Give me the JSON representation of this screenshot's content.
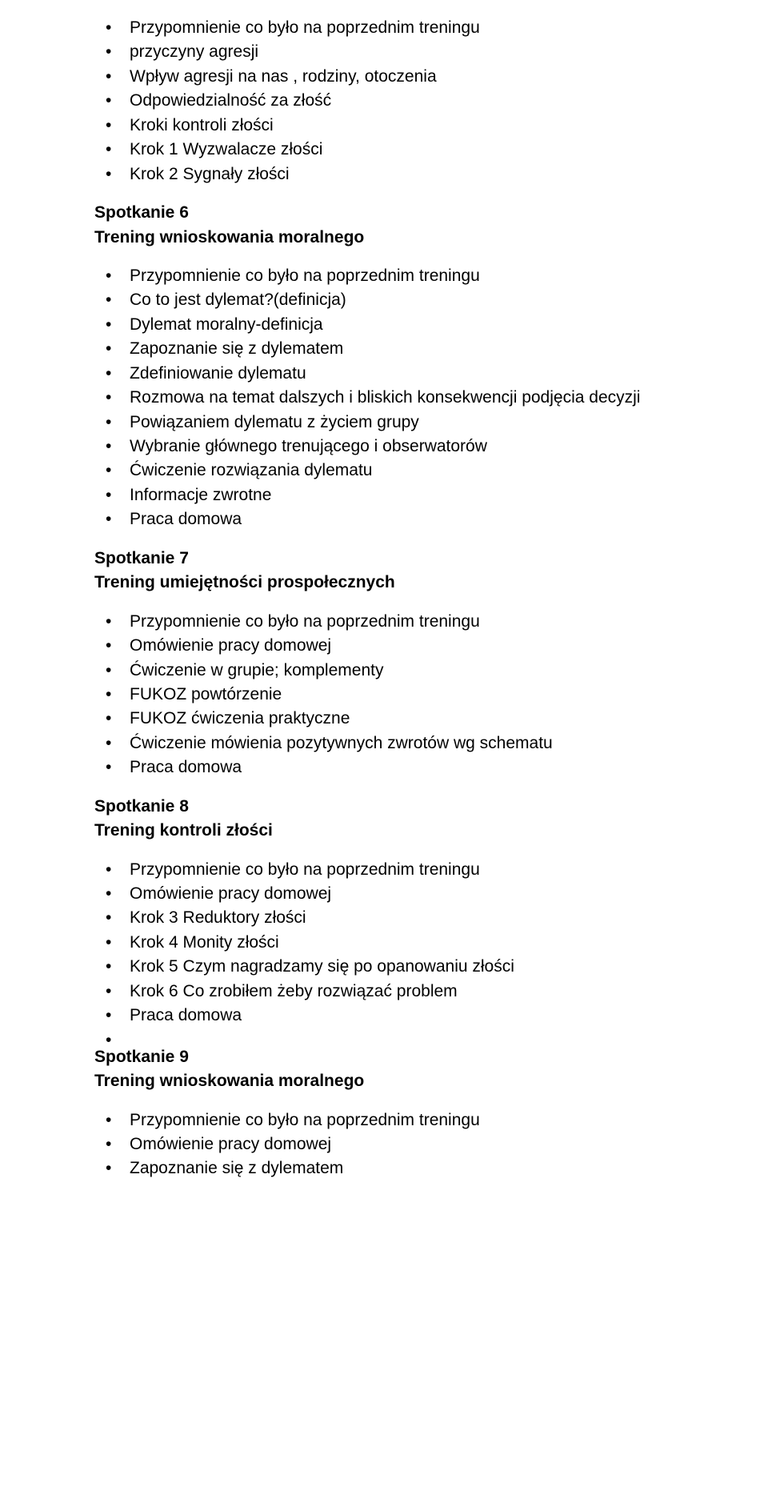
{
  "sections": [
    {
      "type": "list",
      "items": [
        "Przypomnienie co było na poprzednim treningu",
        "przyczyny agresji",
        "Wpływ agresji na nas , rodziny, otoczenia",
        "Odpowiedzialność za złość",
        "Kroki kontroli złości",
        "Krok 1 Wyzwalacze złości",
        "Krok 2 Sygnały złości"
      ]
    },
    {
      "type": "heading",
      "lines": [
        "Spotkanie 6",
        "Trening wnioskowania moralnego"
      ]
    },
    {
      "type": "list",
      "items": [
        "Przypomnienie co było na poprzednim treningu",
        "Co to jest dylemat?(definicja)",
        "Dylemat moralny-definicja",
        "Zapoznanie się z dylematem",
        "Zdefiniowanie dylematu",
        "Rozmowa na temat dalszych i bliskich konsekwencji podjęcia decyzji",
        "Powiązaniem dylematu z życiem grupy",
        "Wybranie głównego trenującego i obserwatorów",
        "Ćwiczenie rozwiązania dylematu",
        "Informacje zwrotne",
        "Praca domowa"
      ]
    },
    {
      "type": "heading",
      "lines": [
        "Spotkanie 7",
        "Trening umiejętności prospołecznych"
      ]
    },
    {
      "type": "list",
      "items": [
        "Przypomnienie co było na poprzednim treningu",
        "Omówienie pracy domowej",
        "Ćwiczenie w grupie; komplementy",
        "FUKOZ powtórzenie",
        "FUKOZ ćwiczenia praktyczne",
        "Ćwiczenie mówienia pozytywnych zwrotów wg schematu",
        "Praca domowa"
      ]
    },
    {
      "type": "heading",
      "lines": [
        "Spotkanie 8",
        "Trening kontroli złości"
      ]
    },
    {
      "type": "list-with-trailing-empty",
      "items": [
        "Przypomnienie co było na poprzednim treningu",
        "Omówienie pracy domowej",
        "Krok 3 Reduktory złości",
        "Krok 4 Monity złości",
        "Krok 5 Czym nagradzamy się po opanowaniu złości",
        "Krok 6 Co zrobiłem żeby rozwiązać problem",
        "Praca domowa"
      ]
    },
    {
      "type": "heading",
      "lines": [
        "Spotkanie 9",
        "Trening wnioskowania moralnego"
      ]
    },
    {
      "type": "list",
      "items": [
        "Przypomnienie co było na poprzednim treningu",
        "Omówienie pracy domowej",
        "Zapoznanie się z dylematem"
      ]
    }
  ]
}
